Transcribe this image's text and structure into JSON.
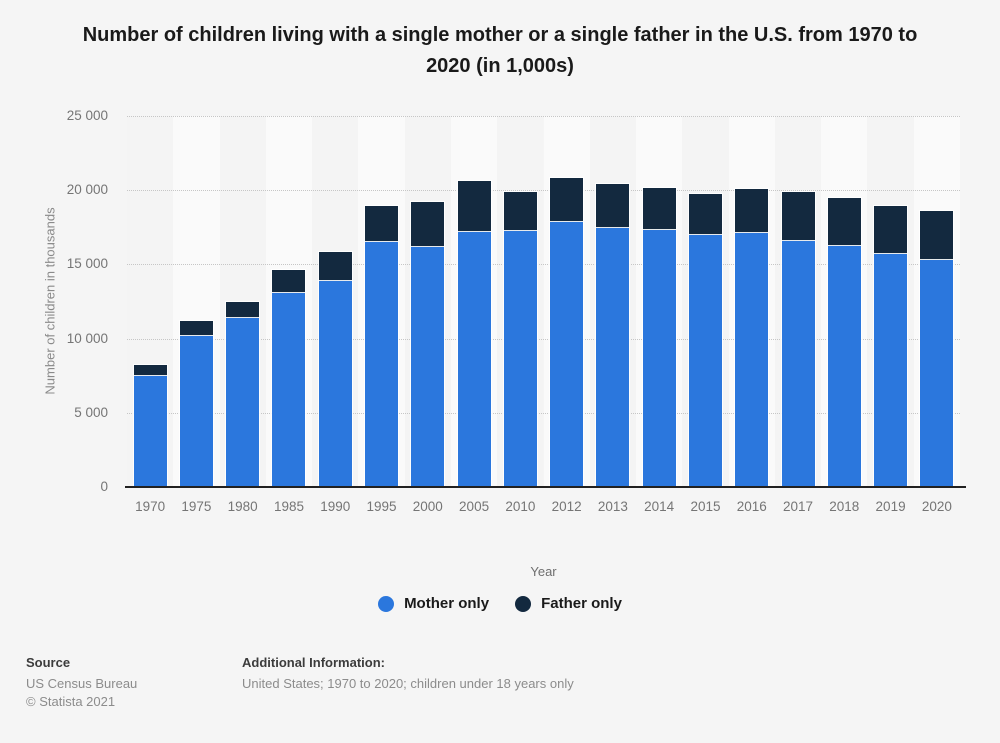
{
  "title": "Number of children living with a single mother or a single father in the U.S. from 1970 to 2020 (in 1,000s)",
  "chart_data": {
    "type": "bar",
    "stacked": true,
    "title": "Number of children living with a single mother or a single father in the U.S. from 1970 to 2020 (in 1,000s)",
    "categories": [
      "1970",
      "1975",
      "1980",
      "1985",
      "1990",
      "1995",
      "2000",
      "2005",
      "2010",
      "2012",
      "2013",
      "2014",
      "2015",
      "2016",
      "2017",
      "2018",
      "2019",
      "2020"
    ],
    "series": [
      {
        "name": "Mother only",
        "color": "#2b77dd",
        "values": [
          7452,
          10183,
          11406,
          13081,
          13874,
          16477,
          16162,
          17162,
          17283,
          17850,
          17450,
          17300,
          16950,
          17100,
          16600,
          16250,
          15700,
          15300
        ]
      },
      {
        "name": "Father only",
        "color": "#13293f",
        "values": [
          748,
          1014,
          1060,
          1554,
          1993,
          2461,
          3058,
          3459,
          2572,
          2950,
          2950,
          2850,
          2800,
          3000,
          3250,
          3250,
          3250,
          3300
        ]
      }
    ],
    "xlabel": "Year",
    "ylabel": "Number of children in thousands",
    "ylim": [
      0,
      25000
    ],
    "ytick_interval": 5000,
    "ytick_labels": [
      "0",
      "5 000",
      "10 000",
      "15 000",
      "20 000",
      "25 000"
    ],
    "grid": "horizontal-dotted",
    "legend_position": "bottom",
    "plot_band_colors": [
      "#f4f4f4",
      "#fafafa"
    ]
  },
  "footer": {
    "source_label": "Source",
    "source_lines": [
      "US Census Bureau",
      "© Statista 2021"
    ],
    "additional_label": "Additional Information:",
    "additional_text": "United States; 1970 to 2020; children under 18 years only"
  },
  "colors": {
    "background": "#f5f5f5",
    "mother_only": "#2b77dd",
    "father_only": "#13293f",
    "axis_line": "#212121",
    "tick_text": "#757575"
  }
}
